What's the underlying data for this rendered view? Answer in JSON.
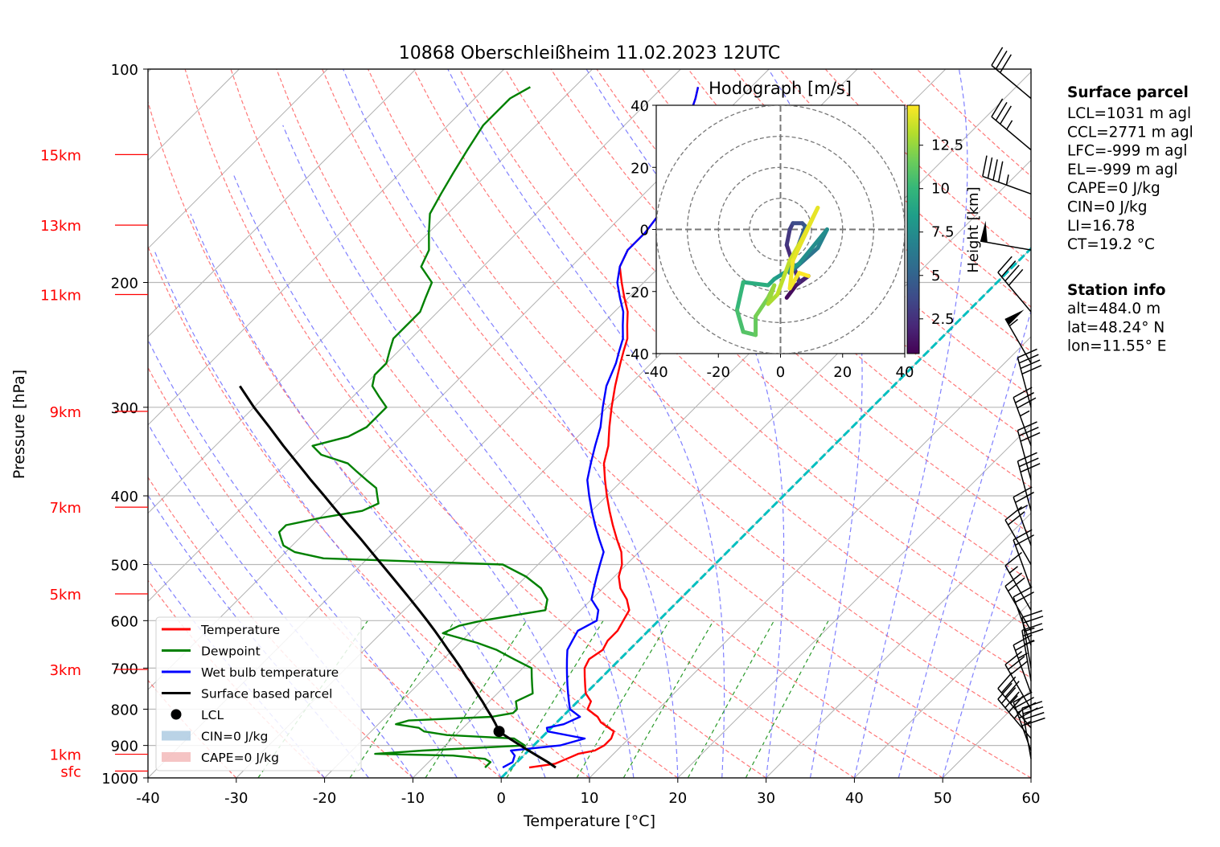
{
  "title": "10868 Oberschleißheim 11.02.2023 12UTC",
  "xlabel": "Temperature [°C]",
  "ylabel": "Pressure [hPa]",
  "height_labels": [
    {
      "label": "15km",
      "p": 132
    },
    {
      "label": "13km",
      "p": 166
    },
    {
      "label": "11km",
      "p": 208
    },
    {
      "label": "9km",
      "p": 304
    },
    {
      "label": "7km",
      "p": 415
    },
    {
      "label": "5km",
      "p": 550
    },
    {
      "label": "3km",
      "p": 703
    },
    {
      "label": "1km",
      "p": 926
    },
    {
      "label": "sfc",
      "p": 978
    }
  ],
  "legend": [
    {
      "label": "Temperature",
      "kind": "line",
      "color": "#ff0000"
    },
    {
      "label": "Dewpoint",
      "kind": "line",
      "color": "#008000"
    },
    {
      "label": "Wet bulb temperature",
      "kind": "line",
      "color": "#0000ff"
    },
    {
      "label": "Surface based parcel",
      "kind": "line",
      "color": "#000000"
    },
    {
      "label": "LCL",
      "kind": "dot",
      "color": "#000000"
    },
    {
      "label": "CIN=0 J/kg",
      "kind": "patch",
      "color": "#a9c8e0"
    },
    {
      "label": "CAPE=0 J/kg",
      "kind": "patch",
      "color": "#f2b5b5"
    }
  ],
  "surface_parcel": {
    "heading": "Surface parcel",
    "lines": [
      "LCL=1031 m agl",
      "CCL=2771 m agl",
      "LFC=-999 m agl",
      "EL=-999 m agl",
      "CAPE=0 J/kg",
      "CIN=0 J/kg",
      "LI=16.78",
      "CT=19.2 °C"
    ]
  },
  "station_info": {
    "heading": "Station info",
    "lines": [
      "alt=484.0 m",
      "lat=48.24° N",
      "lon=11.55° E"
    ]
  },
  "hodograph": {
    "title": "Hodograph [m/s]",
    "ticks": [
      -40,
      -20,
      0,
      20,
      40
    ],
    "colorbar_label": "Height [km]",
    "colorbar_ticks": [
      2.5,
      5.0,
      7.5,
      10.0,
      12.5
    ],
    "colorbar_range": [
      0.5,
      14.8
    ],
    "path": [
      {
        "u": 2.0,
        "v": -22.0,
        "h": 0.5
      },
      {
        "u": 5.0,
        "v": -18.0,
        "h": 0.9
      },
      {
        "u": 9.0,
        "v": -15.0,
        "h": 1.3
      },
      {
        "u": 6.0,
        "v": -17.0,
        "h": 1.8
      },
      {
        "u": 2.0,
        "v": -5.0,
        "h": 2.3
      },
      {
        "u": 3.0,
        "v": 0.0,
        "h": 2.8
      },
      {
        "u": 4.0,
        "v": 2.0,
        "h": 3.2
      },
      {
        "u": 7.0,
        "v": 2.0,
        "h": 3.8
      },
      {
        "u": 8.0,
        "v": 1.0,
        "h": 4.2
      },
      {
        "u": 4.0,
        "v": -10.0,
        "h": 4.8
      },
      {
        "u": 3.0,
        "v": -14.0,
        "h": 5.3
      },
      {
        "u": 12.0,
        "v": -6.0,
        "h": 6.0
      },
      {
        "u": 15.0,
        "v": 0.0,
        "h": 6.8
      },
      {
        "u": 6.0,
        "v": -11.0,
        "h": 7.5
      },
      {
        "u": -2.0,
        "v": -16.0,
        "h": 8.2
      },
      {
        "u": -4.0,
        "v": -18.0,
        "h": 8.8
      },
      {
        "u": -12.0,
        "v": -17.0,
        "h": 9.4
      },
      {
        "u": -14.0,
        "v": -26.0,
        "h": 10.0
      },
      {
        "u": -12.0,
        "v": -33.0,
        "h": 10.6
      },
      {
        "u": -8.0,
        "v": -34.0,
        "h": 11.0
      },
      {
        "u": -8.0,
        "v": -28.0,
        "h": 11.4
      },
      {
        "u": -4.0,
        "v": -22.0,
        "h": 11.8
      },
      {
        "u": -2.0,
        "v": -18.0,
        "h": 12.2
      },
      {
        "u": -4.0,
        "v": -24.0,
        "h": 12.6
      },
      {
        "u": -1.0,
        "v": -21.0,
        "h": 13.0
      },
      {
        "u": 3.0,
        "v": -10.0,
        "h": 13.4
      },
      {
        "u": 7.0,
        "v": -3.0,
        "h": 13.8
      },
      {
        "u": 12.0,
        "v": 7.0,
        "h": 14.1
      },
      {
        "u": 4.0,
        "v": -10.0,
        "h": 14.3
      },
      {
        "u": 3.0,
        "v": -19.0,
        "h": 14.5
      },
      {
        "u": 6.0,
        "v": -14.0,
        "h": 14.6
      },
      {
        "u": 9.0,
        "v": -15.0,
        "h": 14.8
      }
    ]
  },
  "chart_data": {
    "type": "line",
    "title": "10868 Oberschleißheim 11.02.2023 12UTC",
    "xlabel": "Temperature [°C]",
    "ylabel": "Pressure [hPa]",
    "xlim": [
      -40,
      60
    ],
    "ylim": [
      1000,
      100
    ],
    "y_scale": "log",
    "x_ticks": [
      -40,
      -30,
      -20,
      -10,
      0,
      10,
      20,
      30,
      40,
      50,
      60
    ],
    "y_ticks": [
      1000,
      900,
      800,
      700,
      600,
      500,
      400,
      300,
      200,
      100
    ],
    "skew": "skew-T log-P diagram",
    "grid": true,
    "legend_position": "lower-left",
    "series": [
      {
        "name": "Temperature",
        "color": "#ff0000",
        "points": [
          [
            967,
            2
          ],
          [
            955,
            4.5
          ],
          [
            945,
            5
          ],
          [
            935,
            5.5
          ],
          [
            925,
            6
          ],
          [
            915,
            7.5
          ],
          [
            900,
            8
          ],
          [
            880,
            8
          ],
          [
            860,
            7.5
          ],
          [
            850,
            6.5
          ],
          [
            835,
            5
          ],
          [
            820,
            4
          ],
          [
            800,
            2
          ],
          [
            780,
            1.5
          ],
          [
            760,
            0
          ],
          [
            740,
            -1
          ],
          [
            720,
            -2
          ],
          [
            700,
            -3
          ],
          [
            680,
            -3.5
          ],
          [
            660,
            -3
          ],
          [
            640,
            -3.5
          ],
          [
            620,
            -3.5
          ],
          [
            600,
            -4
          ],
          [
            580,
            -4.5
          ],
          [
            560,
            -6
          ],
          [
            540,
            -8
          ],
          [
            520,
            -9.5
          ],
          [
            500,
            -10.5
          ],
          [
            480,
            -12
          ],
          [
            460,
            -14
          ],
          [
            440,
            -16
          ],
          [
            420,
            -18
          ],
          [
            400,
            -20
          ],
          [
            380,
            -22
          ],
          [
            360,
            -24
          ],
          [
            340,
            -25.5
          ],
          [
            320,
            -27.5
          ],
          [
            300,
            -29.5
          ],
          [
            280,
            -31.5
          ],
          [
            260,
            -33.5
          ],
          [
            250,
            -34.5
          ],
          [
            240,
            -35.5
          ],
          [
            230,
            -37
          ],
          [
            220,
            -38.5
          ],
          [
            210,
            -40.5
          ],
          [
            200,
            -42.5
          ],
          [
            190,
            -44.5
          ],
          [
            180,
            -45.5
          ],
          [
            170,
            -45.5
          ],
          [
            160,
            -46
          ],
          [
            150,
            -47
          ],
          [
            140,
            -49
          ],
          [
            130,
            -51
          ],
          [
            120,
            -53
          ],
          [
            110,
            -55
          ],
          [
            106,
            -56
          ]
        ]
      },
      {
        "name": "Dewpoint",
        "color": "#008000",
        "points": [
          [
            967,
            -3
          ],
          [
            950,
            -3
          ],
          [
            940,
            -4
          ],
          [
            930,
            -8
          ],
          [
            925,
            -17
          ],
          [
            915,
            -12
          ],
          [
            900,
            -1
          ],
          [
            880,
            -3
          ],
          [
            870,
            -11
          ],
          [
            860,
            -14
          ],
          [
            850,
            -15
          ],
          [
            840,
            -18
          ],
          [
            830,
            -17
          ],
          [
            820,
            -8
          ],
          [
            810,
            -6
          ],
          [
            800,
            -6
          ],
          [
            780,
            -7
          ],
          [
            760,
            -6
          ],
          [
            740,
            -7
          ],
          [
            720,
            -8
          ],
          [
            700,
            -9
          ],
          [
            680,
            -12
          ],
          [
            660,
            -15
          ],
          [
            645,
            -18
          ],
          [
            625,
            -23
          ],
          [
            610,
            -22
          ],
          [
            600,
            -20
          ],
          [
            580,
            -14
          ],
          [
            560,
            -15
          ],
          [
            540,
            -17
          ],
          [
            520,
            -20
          ],
          [
            500,
            -24
          ],
          [
            490,
            -45
          ],
          [
            480,
            -49
          ],
          [
            470,
            -51
          ],
          [
            460,
            -52
          ],
          [
            450,
            -53
          ],
          [
            440,
            -53
          ],
          [
            430,
            -50
          ],
          [
            420,
            -46
          ],
          [
            410,
            -45
          ],
          [
            400,
            -46
          ],
          [
            390,
            -47
          ],
          [
            380,
            -49
          ],
          [
            370,
            -51
          ],
          [
            360,
            -53
          ],
          [
            350,
            -57
          ],
          [
            340,
            -59
          ],
          [
            330,
            -56
          ],
          [
            320,
            -55
          ],
          [
            310,
            -55
          ],
          [
            300,
            -55
          ],
          [
            290,
            -57
          ],
          [
            280,
            -59
          ],
          [
            270,
            -60
          ],
          [
            260,
            -60
          ],
          [
            250,
            -61
          ],
          [
            240,
            -62
          ],
          [
            230,
            -62
          ],
          [
            220,
            -62
          ],
          [
            210,
            -63
          ],
          [
            200,
            -64
          ],
          [
            190,
            -67
          ],
          [
            180,
            -68
          ],
          [
            170,
            -70
          ],
          [
            160,
            -72
          ],
          [
            150,
            -73
          ],
          [
            140,
            -74
          ],
          [
            130,
            -75
          ],
          [
            120,
            -76
          ],
          [
            110,
            -76
          ],
          [
            106,
            -75
          ]
        ]
      },
      {
        "name": "Wet bulb temperature",
        "color": "#0000ff",
        "points": [
          [
            967,
            -1
          ],
          [
            950,
            -0.5
          ],
          [
            930,
            -1
          ],
          [
            915,
            -2
          ],
          [
            900,
            3
          ],
          [
            880,
            5
          ],
          [
            860,
            0
          ],
          [
            850,
            -0.5
          ],
          [
            840,
            1
          ],
          [
            820,
            2
          ],
          [
            800,
            0
          ],
          [
            780,
            -1
          ],
          [
            760,
            -2
          ],
          [
            740,
            -3
          ],
          [
            720,
            -4
          ],
          [
            700,
            -5
          ],
          [
            680,
            -6
          ],
          [
            660,
            -7
          ],
          [
            640,
            -7.5
          ],
          [
            620,
            -8
          ],
          [
            600,
            -7
          ],
          [
            580,
            -8
          ],
          [
            560,
            -10
          ],
          [
            540,
            -11
          ],
          [
            520,
            -12
          ],
          [
            500,
            -13
          ],
          [
            480,
            -14
          ],
          [
            460,
            -16
          ],
          [
            440,
            -18
          ],
          [
            420,
            -20
          ],
          [
            400,
            -22
          ],
          [
            380,
            -24
          ],
          [
            360,
            -25.5
          ],
          [
            340,
            -27
          ],
          [
            320,
            -28.5
          ],
          [
            300,
            -30.5
          ],
          [
            280,
            -32.5
          ],
          [
            260,
            -34
          ],
          [
            250,
            -35
          ],
          [
            240,
            -36
          ],
          [
            230,
            -37.5
          ],
          [
            220,
            -39
          ],
          [
            210,
            -41
          ],
          [
            200,
            -43
          ],
          [
            190,
            -44.5
          ],
          [
            180,
            -45.5
          ],
          [
            170,
            -45.5
          ],
          [
            160,
            -46
          ],
          [
            150,
            -47
          ],
          [
            140,
            -49
          ],
          [
            130,
            -51
          ],
          [
            120,
            -53
          ],
          [
            110,
            -55
          ],
          [
            106,
            -56
          ]
        ]
      },
      {
        "name": "Surface based parcel",
        "color": "#000000",
        "points": [
          [
            967,
            5
          ],
          [
            950,
            3.5
          ],
          [
            930,
            1.5
          ],
          [
            910,
            -0.5
          ],
          [
            890,
            -2.5
          ],
          [
            870,
            -4.5
          ],
          [
            860,
            -5.5
          ],
          [
            840,
            -6.7
          ],
          [
            820,
            -8
          ],
          [
            800,
            -9.4
          ],
          [
            780,
            -10.8
          ],
          [
            760,
            -12.3
          ],
          [
            740,
            -13.8
          ],
          [
            720,
            -15.4
          ],
          [
            700,
            -17
          ],
          [
            680,
            -18.7
          ],
          [
            660,
            -20.5
          ],
          [
            640,
            -22.3
          ],
          [
            620,
            -24.2
          ],
          [
            600,
            -26.2
          ],
          [
            580,
            -28.3
          ],
          [
            560,
            -30.5
          ],
          [
            540,
            -32.8
          ],
          [
            520,
            -35.2
          ],
          [
            500,
            -37.7
          ],
          [
            480,
            -40.3
          ],
          [
            460,
            -43
          ],
          [
            440,
            -45.9
          ],
          [
            420,
            -48.9
          ],
          [
            400,
            -52
          ],
          [
            380,
            -55.3
          ],
          [
            360,
            -58.7
          ],
          [
            340,
            -62.3
          ],
          [
            320,
            -66
          ],
          [
            300,
            -70
          ],
          [
            280,
            -74
          ]
        ]
      }
    ],
    "lcl": {
      "p": 860,
      "t": -5.5
    },
    "freezing_level_line": [
      [
        1000,
        0
      ],
      [
        140,
        0
      ]
    ],
    "wind_barbs": [
      {
        "p": 940,
        "dir": 170,
        "kt": 40
      },
      {
        "p": 915,
        "dir": 160,
        "kt": 45
      },
      {
        "p": 880,
        "dir": 140,
        "kt": 45
      },
      {
        "p": 850,
        "dir": 140,
        "kt": 35
      },
      {
        "p": 800,
        "dir": 150,
        "kt": 30
      },
      {
        "p": 760,
        "dir": 160,
        "kt": 25
      },
      {
        "p": 730,
        "dir": 170,
        "kt": 25
      },
      {
        "p": 700,
        "dir": 170,
        "kt": 25
      },
      {
        "p": 650,
        "dir": 160,
        "kt": 20
      },
      {
        "p": 620,
        "dir": 150,
        "kt": 20
      },
      {
        "p": 580,
        "dir": 150,
        "kt": 15
      },
      {
        "p": 540,
        "dir": 160,
        "kt": 20
      },
      {
        "p": 500,
        "dir": 150,
        "kt": 20
      },
      {
        "p": 470,
        "dir": 160,
        "kt": 25
      },
      {
        "p": 420,
        "dir": 165,
        "kt": 30
      },
      {
        "p": 380,
        "dir": 165,
        "kt": 30
      },
      {
        "p": 340,
        "dir": 160,
        "kt": 35
      },
      {
        "p": 300,
        "dir": 165,
        "kt": 40
      },
      {
        "p": 260,
        "dir": 150,
        "kt": 55
      },
      {
        "p": 220,
        "dir": 140,
        "kt": 40
      },
      {
        "p": 180,
        "dir": 100,
        "kt": 50
      },
      {
        "p": 150,
        "dir": 110,
        "kt": 45
      },
      {
        "p": 130,
        "dir": 130,
        "kt": 35
      },
      {
        "p": 110,
        "dir": 130,
        "kt": 30
      }
    ]
  }
}
